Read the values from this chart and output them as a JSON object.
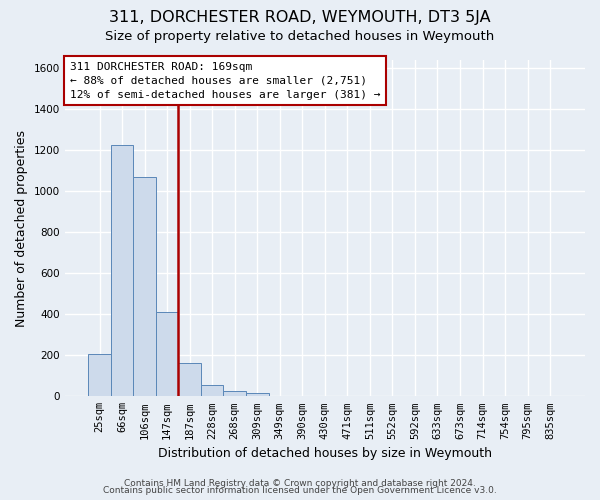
{
  "title": "311, DORCHESTER ROAD, WEYMOUTH, DT3 5JA",
  "subtitle": "Size of property relative to detached houses in Weymouth",
  "xlabel": "Distribution of detached houses by size in Weymouth",
  "ylabel": "Number of detached properties",
  "footer_lines": [
    "Contains HM Land Registry data © Crown copyright and database right 2024.",
    "Contains public sector information licensed under the Open Government Licence v3.0."
  ],
  "bar_labels": [
    "25sqm",
    "66sqm",
    "106sqm",
    "147sqm",
    "187sqm",
    "228sqm",
    "268sqm",
    "309sqm",
    "349sqm",
    "390sqm",
    "430sqm",
    "471sqm",
    "511sqm",
    "552sqm",
    "592sqm",
    "633sqm",
    "673sqm",
    "714sqm",
    "754sqm",
    "795sqm",
    "835sqm"
  ],
  "bar_values": [
    205,
    1225,
    1070,
    410,
    160,
    55,
    25,
    18,
    0,
    0,
    0,
    0,
    0,
    0,
    0,
    0,
    0,
    0,
    0,
    0,
    0
  ],
  "bar_color": "#cddaeb",
  "bar_edge_color": "#5a87b8",
  "ylim": [
    0,
    1640
  ],
  "yticks": [
    0,
    200,
    400,
    600,
    800,
    1000,
    1200,
    1400,
    1600
  ],
  "property_line_color": "#aa0000",
  "property_line_x": 3.5,
  "annotation_title": "311 DORCHESTER ROAD: 169sqm",
  "annotation_line1": "← 88% of detached houses are smaller (2,751)",
  "annotation_line2": "12% of semi-detached houses are larger (381) →",
  "background_color": "#e8eef5",
  "plot_bg_color": "#e8eef5",
  "grid_color": "#ffffff",
  "title_fontsize": 11.5,
  "subtitle_fontsize": 9.5,
  "axis_label_fontsize": 9,
  "tick_fontsize": 7.5,
  "annotation_fontsize": 8,
  "footer_fontsize": 6.5
}
